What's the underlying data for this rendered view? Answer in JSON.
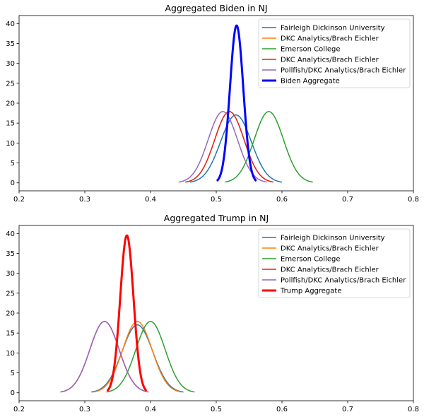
{
  "chart_data": [
    {
      "type": "line",
      "title": "Aggregated Biden in NJ",
      "xlabel": "",
      "ylabel": "",
      "xlim": [
        0.2,
        0.8
      ],
      "ylim": [
        -2,
        42
      ],
      "xticks": [
        0.2,
        0.3,
        0.4,
        0.5,
        0.6,
        0.7,
        0.8
      ],
      "yticks": [
        0,
        5,
        10,
        15,
        20,
        25,
        30,
        35,
        40
      ],
      "grid": false,
      "legend_position": "top-right",
      "series": [
        {
          "name": "Fairleigh Dickinson University",
          "color": "#1f77b4",
          "mean": 0.53,
          "sd": 0.0234,
          "range": [
            0.46,
            0.6
          ],
          "peak": 17.05
        },
        {
          "name": "DKC Analytics/Brach Eichler",
          "color": "#ff7f0e",
          "mean": 0.52,
          "sd": 0.0223,
          "range": [
            0.453,
            0.587
          ],
          "peak": 17.9
        },
        {
          "name": "Emerson College",
          "color": "#2ca02c",
          "mean": 0.58,
          "sd": 0.0223,
          "range": [
            0.513,
            0.647
          ],
          "peak": 17.9
        },
        {
          "name": "DKC Analytics/Brach Eichler",
          "color": "#d62728",
          "mean": 0.52,
          "sd": 0.0223,
          "range": [
            0.453,
            0.587
          ],
          "peak": 17.9
        },
        {
          "name": "Pollfish/DKC Analytics/Brach Eichler",
          "color": "#9467bd",
          "mean": 0.51,
          "sd": 0.0223,
          "range": [
            0.443,
            0.577
          ],
          "peak": 17.9
        },
        {
          "name": "Biden Aggregate",
          "color": "#0000ff",
          "mean": 0.531,
          "sd": 0.0101,
          "range": [
            0.501,
            0.561
          ],
          "peak": 39.5,
          "bold": true
        }
      ]
    },
    {
      "type": "line",
      "title": "Aggregated Trump in NJ",
      "xlabel": "",
      "ylabel": "",
      "xlim": [
        0.2,
        0.8
      ],
      "ylim": [
        -2,
        42
      ],
      "xticks": [
        0.2,
        0.3,
        0.4,
        0.5,
        0.6,
        0.7,
        0.8
      ],
      "yticks": [
        0,
        5,
        10,
        15,
        20,
        25,
        30,
        35,
        40
      ],
      "grid": false,
      "legend_position": "top-right",
      "series": [
        {
          "name": "Fairleigh Dickinson University",
          "color": "#1f77b4",
          "mean": 0.38,
          "sd": 0.0234,
          "range": [
            0.31,
            0.45
          ],
          "peak": 17.05
        },
        {
          "name": "DKC Analytics/Brach Eichler",
          "color": "#ff7f0e",
          "mean": 0.38,
          "sd": 0.0223,
          "range": [
            0.313,
            0.447
          ],
          "peak": 17.9
        },
        {
          "name": "Emerson College",
          "color": "#2ca02c",
          "mean": 0.4,
          "sd": 0.0223,
          "range": [
            0.333,
            0.467
          ],
          "peak": 17.9
        },
        {
          "name": "DKC Analytics/Brach Eichler",
          "color": "#d62728",
          "mean": 0.33,
          "sd": 0.0223,
          "range": [
            0.263,
            0.397
          ],
          "peak": 17.9
        },
        {
          "name": "Pollfish/DKC Analytics/Brach Eichler",
          "color": "#9467bd",
          "mean": 0.33,
          "sd": 0.0223,
          "range": [
            0.263,
            0.397
          ],
          "peak": 17.9
        },
        {
          "name": "Trump Aggregate",
          "color": "#ff0000",
          "mean": 0.364,
          "sd": 0.0101,
          "range": [
            0.334,
            0.394
          ],
          "peak": 39.5,
          "bold": true
        }
      ]
    }
  ]
}
